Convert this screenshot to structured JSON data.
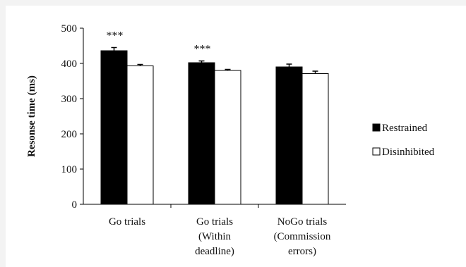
{
  "chart_data": {
    "type": "bar",
    "categories": [
      [
        "Go trials"
      ],
      [
        "Go trials",
        "(Within",
        "deadline)"
      ],
      [
        "NoGo trials",
        "(Commission",
        "errors)"
      ]
    ],
    "series": [
      {
        "name": "Restrained",
        "color": "#000000",
        "values": [
          436,
          402,
          390
        ],
        "errors": [
          9,
          5,
          8
        ]
      },
      {
        "name": "Disinhibited",
        "color": "#ffffff",
        "values": [
          393,
          380,
          371
        ],
        "errors": [
          4,
          3,
          7
        ]
      }
    ],
    "significance": [
      "***",
      "***",
      ""
    ],
    "ylabel": "Resonse time (ms)",
    "ylim": [
      0,
      500
    ],
    "yticks": [
      0,
      100,
      200,
      300,
      400,
      500
    ],
    "grid": false,
    "legend": "right"
  }
}
